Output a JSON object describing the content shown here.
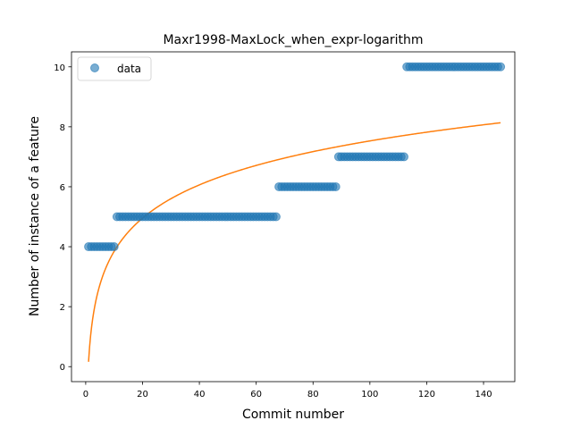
{
  "chart_data": {
    "type": "scatter",
    "title": "Maxr1998-MaxLock_when_expr-logarithm",
    "xlabel": "Commit number",
    "ylabel": "Number of instance of a feature",
    "xlim": [
      -5,
      151
    ],
    "ylim": [
      -0.5,
      10.5
    ],
    "xticks": [
      0,
      20,
      40,
      60,
      80,
      100,
      120,
      140
    ],
    "yticks": [
      0,
      2,
      4,
      6,
      8,
      10
    ],
    "grid": false,
    "legend": {
      "placement": "top-left",
      "entries": [
        "data"
      ]
    },
    "colors": {
      "data": "#1f77b4",
      "fit": "#ff7f0e"
    },
    "series": [
      {
        "name": "data",
        "kind": "scatter",
        "segments": [
          {
            "x_start": 1,
            "x_end": 10,
            "y": 4
          },
          {
            "x_start": 11,
            "x_end": 67,
            "y": 5
          },
          {
            "x_start": 68,
            "x_end": 88,
            "y": 6
          },
          {
            "x_start": 89,
            "x_end": 112,
            "y": 7
          },
          {
            "x_start": 113,
            "x_end": 146,
            "y": 10
          }
        ]
      },
      {
        "kind": "line",
        "formula": "y = a + b*ln(x)",
        "a": 0.16,
        "b": 1.6,
        "x_range": [
          1,
          146
        ]
      }
    ]
  }
}
